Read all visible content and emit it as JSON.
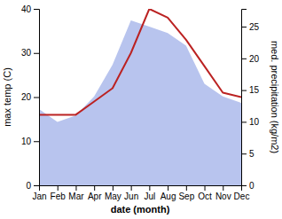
{
  "chart_data": {
    "type": "line",
    "xlabel": "date (month)",
    "ylabel": "max temp (C)",
    "y2label": "med. precipitation (kg/m2)",
    "categories": [
      "Jan",
      "Feb",
      "Mar",
      "Apr",
      "May",
      "Jun",
      "Jul",
      "Aug",
      "Sep",
      "Oct",
      "Nov",
      "Dec"
    ],
    "series": [
      {
        "type": "area",
        "axis": "y2",
        "color": "#b8c4ee",
        "values": [
          12,
          10,
          11,
          14,
          19,
          26,
          25,
          24,
          22,
          16,
          14,
          13
        ]
      },
      {
        "type": "line",
        "color": "#bb2222",
        "values": [
          16,
          16,
          16,
          19,
          22,
          30,
          40,
          38,
          33,
          27,
          21,
          20
        ]
      }
    ],
    "ylim": [
      0,
      40
    ],
    "yticks": [
      0,
      10,
      20,
      30,
      40
    ],
    "y2lim": [
      0,
      27.8
    ],
    "y2ticks": [
      0,
      5,
      10,
      15,
      20,
      25
    ]
  }
}
